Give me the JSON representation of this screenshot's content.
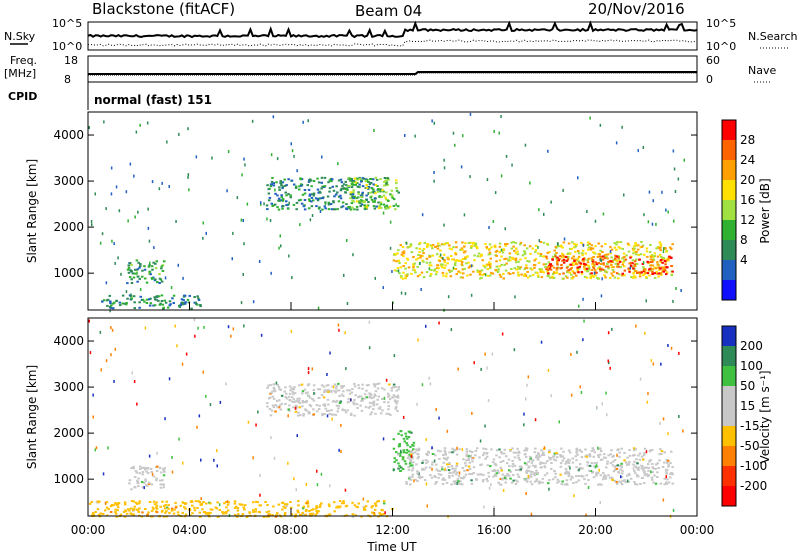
{
  "header": {
    "radar": "Blackstone (fitACF)",
    "beam": "Beam 04",
    "date": "20/Nov/2016"
  },
  "summary_panels": {
    "nsky_label": "N.Sky",
    "nsearch_label": "N.Search",
    "noise_ticks": [
      "10^5",
      "10^0"
    ],
    "freq_label": "Freq.",
    "freq_unit": "[MHz]",
    "freq_ticks": [
      "18",
      "8"
    ],
    "nave_label": "Nave",
    "nave_ticks": [
      "60",
      "0"
    ],
    "cpid_label": "CPID",
    "cpid_value": "normal (fast) 151"
  },
  "chart_data": [
    {
      "type": "heatmap",
      "name": "Power",
      "ylabel": "Slant Range [km]",
      "xlabel": "Time UT",
      "x_ticks": [
        "00:00",
        "04:00",
        "08:00",
        "12:00",
        "16:00",
        "20:00",
        "00:00"
      ],
      "x_range_hours": [
        0,
        24
      ],
      "y_ticks": [
        1000,
        2000,
        3000,
        4000
      ],
      "y_range": [
        200,
        4500
      ],
      "colorbar_label": "Power [dB]",
      "colorbar_ticks": [
        "28",
        "24",
        "20",
        "16",
        "12",
        "8",
        "4"
      ],
      "colorbar_colors": [
        "#ff0000",
        "#ff6400",
        "#ffa000",
        "#ffe000",
        "#a0e040",
        "#30b030",
        "#2e8b57",
        "#2060c0",
        "#1010ff"
      ],
      "regions": [
        {
          "t": [
            1.5,
            3.0
          ],
          "r": [
            800,
            1300
          ],
          "level": 10
        },
        {
          "t": [
            0.5,
            4.5
          ],
          "r": [
            250,
            550
          ],
          "level": 8
        },
        {
          "t": [
            7.0,
            11.5
          ],
          "r": [
            2400,
            3100
          ],
          "level": 8
        },
        {
          "t": [
            10.2,
            12.2
          ],
          "r": [
            2400,
            3100
          ],
          "level": 14
        },
        {
          "t": [
            12.0,
            23.0
          ],
          "r": [
            900,
            1700
          ],
          "level": 20
        },
        {
          "t": [
            18.0,
            23.0
          ],
          "r": [
            1000,
            1400
          ],
          "level": 28
        }
      ]
    },
    {
      "type": "heatmap",
      "name": "Velocity",
      "ylabel": "Slant Range [km]",
      "xlabel": "Time UT",
      "x_ticks": [
        "00:00",
        "04:00",
        "08:00",
        "12:00",
        "16:00",
        "20:00",
        "00:00"
      ],
      "x_range_hours": [
        0,
        24
      ],
      "y_ticks": [
        1000,
        2000,
        3000,
        4000
      ],
      "y_range": [
        200,
        4500
      ],
      "colorbar_label": "Velocity [m s⁻¹]",
      "colorbar_ticks": [
        "200",
        "100",
        "50",
        "15",
        "-15",
        "-50",
        "-100",
        "-200"
      ],
      "colorbar_colors": [
        "#1830c0",
        "#2e8b57",
        "#40c040",
        "#c8c8c8",
        "#c8c8c8",
        "#ffc000",
        "#ff8000",
        "#ff3000",
        "#ff0000"
      ],
      "regions": [
        {
          "t": [
            1.5,
            3.0
          ],
          "r": [
            800,
            1300
          ],
          "level": 0
        },
        {
          "t": [
            0.0,
            12.0
          ],
          "r": [
            200,
            550
          ],
          "level": -40
        },
        {
          "t": [
            7.0,
            12.2
          ],
          "r": [
            2400,
            3100
          ],
          "level": 0
        },
        {
          "t": [
            12.5,
            23.0
          ],
          "r": [
            900,
            1700
          ],
          "level": 0
        },
        {
          "t": [
            12.0,
            12.8
          ],
          "r": [
            1200,
            2100
          ],
          "level": 40
        }
      ]
    }
  ]
}
